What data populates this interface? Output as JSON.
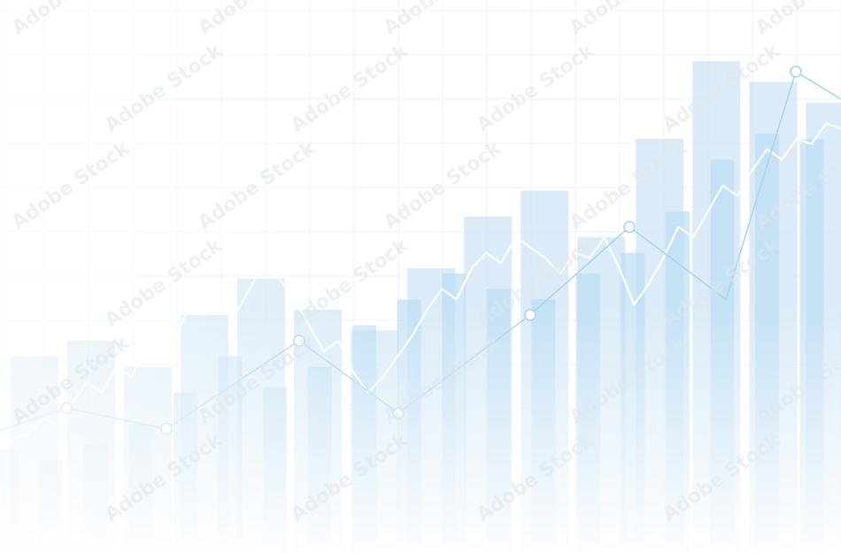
{
  "watermark": {
    "text": "Adobe Stock"
  },
  "colors": {
    "background": "#ffffff",
    "grid": "#eef2f5",
    "bar_back": "#cfe6f5",
    "bar_front": "#b9dcf2",
    "line": "#a9d6ea",
    "marker_fill": "#ffffff",
    "ticker": "#ffffff"
  },
  "chart_data": {
    "type": "bar",
    "title": "",
    "xlabel": "",
    "ylabel": "",
    "ylim": [
      0,
      100
    ],
    "grid": true,
    "legend": "none",
    "series": [
      {
        "values": [
          38,
          41,
          36,
          46,
          53,
          47,
          43,
          55,
          65,
          70,
          61,
          80,
          95,
          91,
          87
        ]
      },
      {
        "values": [
          20,
          18,
          21,
          25,
          31,
          38,
          32,
          36,
          44,
          49,
          54,
          51,
          49,
          54,
          58,
          66,
          76,
          81,
          80
        ]
      },
      {
        "values": [
          23,
          28,
          24,
          41,
          27,
          46,
          63,
          49,
          93,
          84
        ]
      }
    ],
    "ticker": [
      22,
      23,
      26,
      25,
      29,
      33,
      31,
      36,
      34,
      40,
      44,
      42,
      48,
      52,
      50,
      46,
      51,
      56,
      53,
      49,
      44,
      39,
      41,
      35,
      31,
      34,
      38,
      42,
      47,
      51,
      49,
      55,
      58,
      56,
      61,
      59,
      57,
      54,
      58,
      57,
      61,
      55,
      48,
      52,
      57,
      63,
      61,
      66,
      71,
      69,
      74,
      78,
      76,
      80,
      79,
      83,
      82
    ]
  }
}
